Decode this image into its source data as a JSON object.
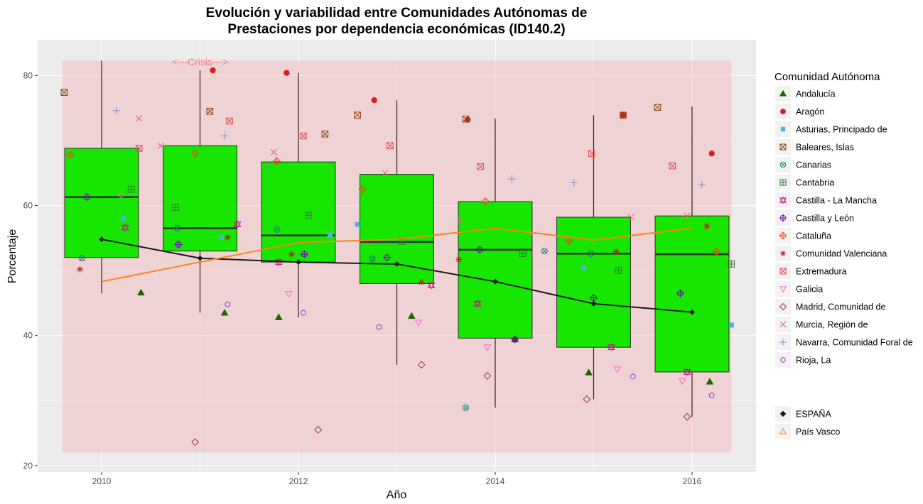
{
  "chart_data": {
    "type": "boxplot",
    "title_line1": "Evolución y variabilidad entre Comunidades Autónomas de",
    "title_line2": "Prestaciones por dependencia económicas (ID140.2)",
    "xlabel": "Año",
    "ylabel": "Porcentaje",
    "x_ticks": [
      "2010",
      "2012",
      "2014",
      "2016"
    ],
    "y_ticks": [
      "20",
      "40",
      "60",
      "80"
    ],
    "xlim": [
      2009.35,
      2016.65
    ],
    "ylim": [
      19,
      85.5
    ],
    "annotation": "<---Crisis--->",
    "colors": {
      "panel": "#ebebeb",
      "shaded_band": "#f4b6b9",
      "box_fill": "#16e600",
      "espana_line": "#1a1a1a",
      "pais_vasco_line": "#f7861f"
    },
    "shaded_region": {
      "x": [
        2009.6,
        2016.4
      ],
      "y": [
        22,
        82.3
      ]
    },
    "annotation_position": {
      "x": 2011.0,
      "y": 82
    },
    "boxes": [
      {
        "year": 2010,
        "min": 46.5,
        "q1": 52.0,
        "median": 61.3,
        "q3": 68.8,
        "max": 82.3
      },
      {
        "year": 2011,
        "min": 43.5,
        "q1": 53.0,
        "median": 56.5,
        "q3": 69.2,
        "max": 80.8
      },
      {
        "year": 2012,
        "min": 42.8,
        "q1": 51.3,
        "median": 55.4,
        "q3": 66.7,
        "max": 80.4
      },
      {
        "year": 2013,
        "min": 35.5,
        "q1": 48.0,
        "median": 54.4,
        "q3": 64.8,
        "max": 76.2
      },
      {
        "year": 2014,
        "min": 28.9,
        "q1": 39.6,
        "median": 53.2,
        "q3": 60.6,
        "max": 73.4
      },
      {
        "year": 2015,
        "min": 30.2,
        "q1": 38.2,
        "median": 52.6,
        "q3": 58.2,
        "max": 73.9
      },
      {
        "year": 2016,
        "min": 27.5,
        "q1": 34.4,
        "median": 52.5,
        "q3": 58.4,
        "max": 75.2
      }
    ],
    "lines": [
      {
        "name": "ESPAÑA",
        "color": "#1a1a1a",
        "marker": "filled-diamond",
        "x": [
          2010,
          2011,
          2012,
          2013,
          2014,
          2015,
          2016
        ],
        "y": [
          54.8,
          51.9,
          51.3,
          51.0,
          48.3,
          44.9,
          43.6
        ]
      },
      {
        "name": "País Vasco",
        "color": "#f7861f",
        "marker": "open-triangle",
        "x": [
          2010,
          2011,
          2012,
          2013,
          2014,
          2015,
          2016
        ],
        "y": [
          48.3,
          51.3,
          54.3,
          54.8,
          56.5,
          54.7,
          56.5
        ]
      }
    ],
    "legend_title": "Comunidad Autónoma",
    "legend_position": "right",
    "series": [
      {
        "name": "Andalucía",
        "color": "#1a6600",
        "marker": "filled-triangle",
        "x": [
          2010.4,
          2011.25,
          2011.8,
          2013.15,
          2014.2,
          2014.95,
          2016.18
        ],
        "y": [
          46.6,
          43.5,
          42.8,
          43.0,
          39.4,
          34.3,
          32.9
        ]
      },
      {
        "name": "Aragón",
        "color": "#e31a1c",
        "marker": "filled-circle",
        "x": [
          2011.13,
          2011.88,
          2012.77,
          2013.72,
          2015.3,
          2016.2
        ],
        "y": [
          80.8,
          80.4,
          76.2,
          73.2,
          73.9,
          68.0
        ]
      },
      {
        "name": "Asturias, Principado de",
        "color": "#4db3e6",
        "marker": "filled-square",
        "x": [
          2010.22,
          2011.22,
          2012.32,
          2012.6,
          2014.9,
          2016.4
        ],
        "y": [
          58.0,
          55.1,
          55.5,
          57.1,
          50.4,
          41.6
        ]
      },
      {
        "name": "Baleares, Islas",
        "color": "#8b4513",
        "marker": "square-x",
        "x": [
          2009.62,
          2011.1,
          2012.27,
          2012.6,
          2013.7,
          2015.3,
          2015.65
        ],
        "y": [
          77.4,
          74.5,
          71.0,
          73.9,
          73.3,
          73.9,
          75.1
        ]
      },
      {
        "name": "Canarias",
        "color": "#1f7a7a",
        "marker": "circle-x",
        "x": [
          2009.8,
          2010.77,
          2011.78,
          2012.75,
          2013.7,
          2014.5,
          2014.97
        ],
        "y": [
          51.9,
          56.5,
          56.3,
          51.8,
          28.9,
          53.0,
          52.6
        ]
      },
      {
        "name": "Cantabria",
        "color": "#2e7d32",
        "marker": "square-plus",
        "x": [
          2010.3,
          2010.75,
          2012.1,
          2013.05,
          2014.28,
          2015.25,
          2016.4
        ],
        "y": [
          62.5,
          59.7,
          58.5,
          54.5,
          52.6,
          50.0,
          51.0
        ]
      },
      {
        "name": "Castilla - La Mancha",
        "color": "#c71585",
        "marker": "star-of-david",
        "x": [
          2010.24,
          2011.38,
          2011.8,
          2013.35,
          2013.82,
          2015.18,
          2015.95
        ],
        "y": [
          56.6,
          57.1,
          51.3,
          47.7,
          44.9,
          38.2,
          34.4
        ]
      },
      {
        "name": "Castilla y León",
        "color": "#6a0dad",
        "marker": "circle-plus",
        "x": [
          2009.85,
          2010.78,
          2012.06,
          2012.9,
          2013.84,
          2014.2,
          2015.0,
          2015.88
        ],
        "y": [
          61.3,
          54.0,
          52.5,
          52.0,
          53.2,
          39.4,
          45.8,
          46.5
        ]
      },
      {
        "name": "Cataluña",
        "color": "#e8491d",
        "marker": "diamond-plus",
        "x": [
          2009.68,
          2010.95,
          2011.78,
          2012.65,
          2013.9,
          2014.75,
          2016.25
        ],
        "y": [
          67.8,
          68.0,
          66.8,
          62.5,
          60.6,
          54.5,
          52.9
        ]
      },
      {
        "name": "Comunidad Valenciana",
        "color": "#b22222",
        "marker": "asterisk",
        "x": [
          2009.78,
          2011.28,
          2011.93,
          2013.25,
          2013.63,
          2015.23,
          2016.15
        ],
        "y": [
          50.2,
          55.1,
          52.5,
          48.2,
          51.7,
          52.9,
          56.8
        ]
      },
      {
        "name": "Extremadura",
        "color": "#e05050",
        "marker": "square-x",
        "x": [
          2010.38,
          2011.3,
          2012.05,
          2012.93,
          2013.85,
          2014.98,
          2015.8
        ],
        "y": [
          68.8,
          73.0,
          70.7,
          69.2,
          66.0,
          68.0,
          66.1
        ]
      },
      {
        "name": "Galicia",
        "color": "#ff66cc",
        "marker": "down-triangle",
        "x": [
          2010.2,
          2011.9,
          2013.22,
          2013.92,
          2015.24,
          2015.9
        ],
        "y": [
          61.5,
          46.4,
          42.0,
          38.2,
          34.8,
          33.0
        ]
      },
      {
        "name": "Madrid, Comunidad de",
        "color": "#a0304a",
        "marker": "open-diamond",
        "x": [
          2010.95,
          2012.2,
          2013.25,
          2013.92,
          2014.93,
          2015.95
        ],
        "y": [
          23.6,
          25.5,
          35.5,
          33.8,
          30.2,
          27.5
        ]
      },
      {
        "name": "Murcia, Región de",
        "color": "#f05a78",
        "marker": "cross-x",
        "x": [
          2010.38,
          2010.6,
          2011.75,
          2012.88,
          2013.65,
          2015.38,
          2015.95
        ],
        "y": [
          73.4,
          69.2,
          68.2,
          65.0,
          57.8,
          58.2,
          58.4
        ]
      },
      {
        "name": "Navarra, Comunidad Foral de",
        "color": "#6f8fd0",
        "marker": "plus",
        "x": [
          2010.15,
          2011.25,
          2011.7,
          2014.17,
          2014.8,
          2016.1
        ],
        "y": [
          74.6,
          70.7,
          65.9,
          64.1,
          63.5,
          63.2
        ]
      },
      {
        "name": "Rioja, La",
        "color": "#9932cc",
        "marker": "open-circle",
        "x": [
          2011.28,
          2012.05,
          2012.82,
          2015.4,
          2016.2
        ],
        "y": [
          44.8,
          43.5,
          41.3,
          33.7,
          30.8
        ]
      }
    ]
  }
}
